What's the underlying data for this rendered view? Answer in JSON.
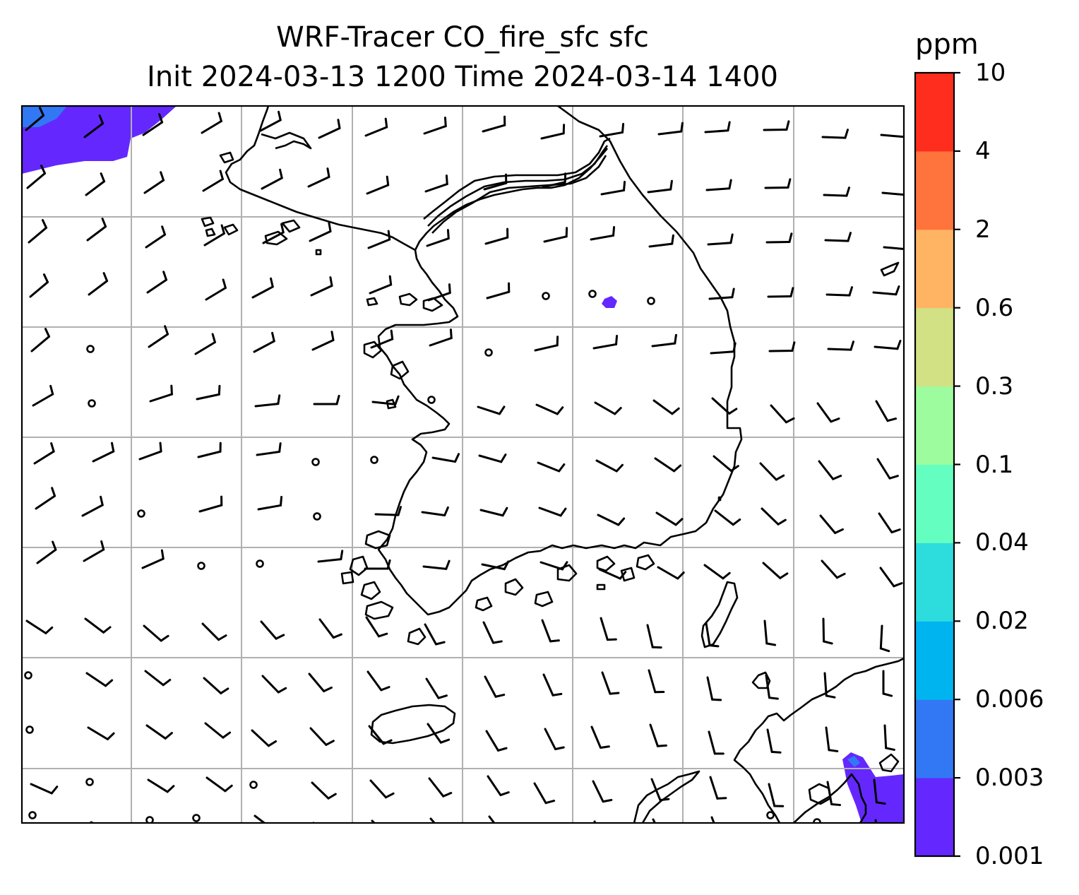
{
  "title": {
    "line1": "WRF-Tracer CO_fire_sfc sfc",
    "line2": "Init 2024-03-13 1200 Time 2024-03-14 1400"
  },
  "colorbar": {
    "unit": "ppm",
    "levels": [
      "0.001",
      "0.003",
      "0.006",
      "0.02",
      "0.04",
      "0.1",
      "0.3",
      "0.6",
      "2",
      "4",
      "10"
    ],
    "colors": [
      "#6428ff",
      "#3278f5",
      "#00b4f0",
      "#2ddcdc",
      "#64ffc0",
      "#9dfc9d",
      "#d2e184",
      "#ffb464",
      "#ff733c",
      "#ff2d1e"
    ]
  },
  "map": {
    "border_color": "#000000",
    "grid_color": "#b0b0b0",
    "coastline_color": "#000000",
    "plume_color_low": "#6428ff",
    "plume_color_mid": "#3278f5"
  }
}
